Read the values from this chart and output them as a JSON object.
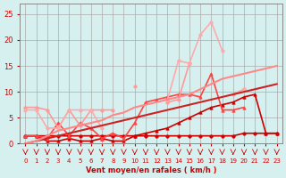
{
  "xlabel": "Vent moyen/en rafales ( km/h )",
  "ylabel": "",
  "bg_color": "#d6f0f0",
  "grid_color": "#aaaaaa",
  "x": [
    0,
    1,
    2,
    3,
    4,
    5,
    6,
    7,
    8,
    9,
    10,
    11,
    12,
    13,
    14,
    15,
    16,
    17,
    18,
    19,
    20,
    21,
    22,
    23
  ],
  "lines": [
    {
      "y": [
        1.5,
        1.5,
        1.5,
        1.5,
        1.5,
        1.5,
        1.5,
        1.5,
        1.5,
        1.5,
        1.5,
        1.5,
        1.5,
        1.5,
        1.5,
        1.5,
        1.5,
        1.5,
        1.5,
        1.5,
        2.0,
        2.0,
        2.0,
        2.0
      ],
      "color": "#cc0000",
      "lw": 1.2,
      "marker": "o",
      "ms": 2.5
    },
    {
      "y": [
        1.5,
        1.5,
        0.5,
        0.5,
        1.0,
        0.5,
        0.5,
        1.0,
        0.5,
        0.5,
        1.5,
        2.0,
        2.5,
        3.0,
        4.0,
        5.0,
        6.0,
        7.0,
        7.5,
        8.0,
        9.0,
        9.5,
        2.0,
        2.0
      ],
      "color": "#cc0000",
      "lw": 1.2,
      "marker": "^",
      "ms": 2.5
    },
    {
      "y": [
        1.5,
        1.5,
        1.0,
        4.0,
        1.5,
        4.0,
        3.0,
        1.0,
        2.0,
        1.0,
        4.0,
        8.0,
        8.5,
        9.0,
        9.5,
        9.5,
        9.0,
        13.5,
        6.5,
        6.5,
        7.0,
        null,
        null,
        null
      ],
      "color": "#ff4444",
      "lw": 1.2,
      "marker": "^",
      "ms": 2.5
    },
    {
      "y": [
        7.0,
        7.0,
        6.5,
        3.0,
        6.5,
        3.5,
        6.5,
        6.5,
        6.5,
        null,
        11.0,
        null,
        null,
        8.0,
        8.5,
        15.5,
        null,
        null,
        null,
        9.5,
        10.5,
        null,
        null,
        null
      ],
      "color": "#ff9999",
      "lw": 1.2,
      "marker": "o",
      "ms": 2.5
    },
    {
      "y": [
        6.5,
        6.5,
        3.0,
        3.0,
        6.5,
        6.5,
        6.5,
        3.0,
        null,
        null,
        null,
        null,
        null,
        8.5,
        16.0,
        15.5,
        21.0,
        23.5,
        18.0,
        null,
        10.5,
        null,
        null,
        null
      ],
      "color": "#ffaaaa",
      "lw": 1.2,
      "marker": "o",
      "ms": 2.5
    },
    {
      "y": [
        null,
        null,
        null,
        null,
        null,
        null,
        null,
        null,
        null,
        null,
        null,
        null,
        null,
        null,
        null,
        null,
        null,
        null,
        null,
        null,
        null,
        null,
        null,
        null
      ],
      "color": "#ff6666",
      "lw": 1.5,
      "marker": null,
      "ms": 0
    },
    {
      "y": [
        0.0,
        0.5,
        1.0,
        1.5,
        2.0,
        2.5,
        3.0,
        3.5,
        4.0,
        4.5,
        5.0,
        5.5,
        6.0,
        6.5,
        7.0,
        7.5,
        8.0,
        8.5,
        9.0,
        9.5,
        10.0,
        10.5,
        11.0,
        11.5
      ],
      "color": "#cc2222",
      "lw": 1.5,
      "marker": null,
      "ms": 0
    },
    {
      "y": [
        0.0,
        0.5,
        1.5,
        2.5,
        3.0,
        3.5,
        4.0,
        4.5,
        5.5,
        6.0,
        7.0,
        7.5,
        8.0,
        8.5,
        9.0,
        9.5,
        10.5,
        11.5,
        12.5,
        13.0,
        13.5,
        14.0,
        14.5,
        15.0
      ],
      "color": "#ff8888",
      "lw": 1.5,
      "marker": null,
      "ms": 0
    }
  ],
  "arrows_x": [
    0,
    1,
    2,
    3,
    4,
    5,
    6,
    7,
    8,
    9,
    10,
    11,
    12,
    13,
    14,
    15,
    16,
    17,
    18,
    19,
    20,
    21,
    22,
    23
  ],
  "xlim": [
    -0.5,
    23.5
  ],
  "ylim": [
    0,
    27
  ],
  "yticks": [
    0,
    5,
    10,
    15,
    20,
    25
  ],
  "xticks": [
    0,
    1,
    2,
    3,
    4,
    5,
    6,
    7,
    8,
    9,
    10,
    11,
    12,
    13,
    14,
    15,
    16,
    17,
    18,
    19,
    20,
    21,
    22,
    23
  ]
}
